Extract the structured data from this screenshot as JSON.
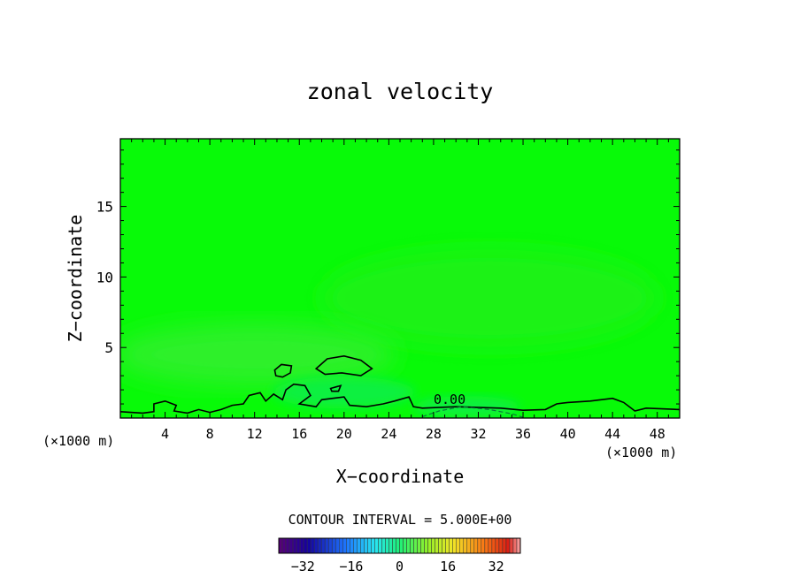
{
  "chart_data": {
    "type": "heatmap",
    "title": "zonal velocity",
    "xlabel": "X−coordinate",
    "ylabel": "Z−coordinate",
    "x_unit": "(×1000 m)",
    "xlim": [
      0,
      50
    ],
    "ylim": [
      0,
      19.8
    ],
    "x_ticks": [
      4,
      8,
      12,
      16,
      20,
      24,
      28,
      32,
      36,
      40,
      44,
      48
    ],
    "y_ticks": [
      5,
      10,
      15
    ],
    "contour_label": "0.00",
    "contour_interval_text": "CONTOUR INTERVAL = 5.000E+00",
    "colorbar": {
      "range": [
        -40,
        40
      ],
      "ticks": [
        -32,
        -16,
        0,
        16,
        32
      ],
      "tick_labels": [
        "−32",
        "−16",
        "0",
        "16",
        "32"
      ]
    },
    "field_colors": {
      "background": "#08fa08",
      "weak_positive": "#2ef02c",
      "weak_negative": "#0ef040",
      "upper_positive": "#1cf214"
    },
    "zero_contour": [
      [
        0,
        0.45
      ],
      [
        2,
        0.35
      ],
      [
        3,
        0.45
      ],
      [
        3,
        1.0
      ],
      [
        4,
        1.2
      ],
      [
        5,
        0.9
      ],
      [
        4.8,
        0.5
      ],
      [
        6,
        0.35
      ],
      [
        7,
        0.6
      ],
      [
        8,
        0.4
      ],
      [
        9,
        0.6
      ],
      [
        10,
        0.9
      ],
      [
        11,
        1.0
      ],
      [
        11.5,
        1.6
      ],
      [
        12.5,
        1.8
      ],
      [
        13,
        1.2
      ],
      [
        13.7,
        1.7
      ],
      [
        14.5,
        1.3
      ],
      [
        14.8,
        2.0
      ],
      [
        15.5,
        2.4
      ],
      [
        16.5,
        2.3
      ],
      [
        17,
        1.6
      ],
      [
        16,
        1.0
      ],
      [
        17.5,
        0.8
      ],
      [
        18,
        1.3
      ],
      [
        20,
        1.5
      ],
      [
        20.5,
        0.9
      ],
      [
        22,
        0.8
      ],
      [
        23.5,
        1.0
      ],
      [
        24.5,
        1.2
      ],
      [
        25.8,
        1.5
      ],
      [
        26.2,
        0.8
      ],
      [
        27,
        0.7
      ],
      [
        30,
        0.8
      ],
      [
        34,
        0.7
      ],
      [
        36,
        0.55
      ],
      [
        38,
        0.6
      ],
      [
        39,
        1.0
      ],
      [
        40,
        1.1
      ],
      [
        42,
        1.2
      ],
      [
        44,
        1.4
      ],
      [
        45,
        1.1
      ],
      [
        46,
        0.5
      ],
      [
        47,
        0.7
      ],
      [
        50,
        0.6
      ]
    ],
    "contour_islands": [
      [
        [
          13.8,
          3.4
        ],
        [
          14.4,
          3.8
        ],
        [
          15.3,
          3.7
        ],
        [
          15.2,
          3.2
        ],
        [
          14.5,
          2.9
        ],
        [
          13.9,
          3.0
        ]
      ],
      [
        [
          17.5,
          3.5
        ],
        [
          18.5,
          4.2
        ],
        [
          20.0,
          4.4
        ],
        [
          21.5,
          4.1
        ],
        [
          22.5,
          3.5
        ],
        [
          21.5,
          3.0
        ],
        [
          19.8,
          3.2
        ],
        [
          18.3,
          3.1
        ]
      ],
      [
        [
          18.8,
          2.1
        ],
        [
          19.7,
          2.3
        ],
        [
          19.5,
          1.9
        ],
        [
          18.9,
          1.9
        ]
      ]
    ],
    "negative_contour": [
      [
        27,
        0.1
      ],
      [
        28.5,
        0.5
      ],
      [
        30.5,
        0.8
      ],
      [
        33,
        0.6
      ],
      [
        35,
        0.3
      ],
      [
        36,
        0.05
      ]
    ]
  }
}
